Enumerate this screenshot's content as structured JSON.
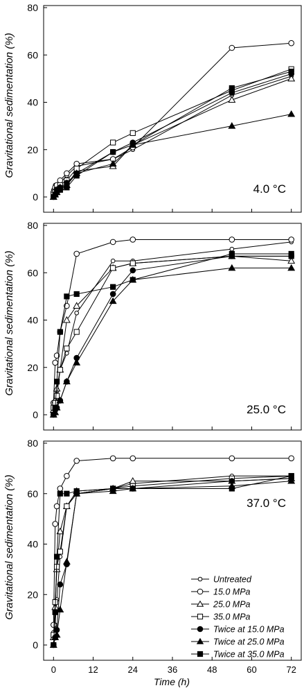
{
  "figure": {
    "ylabel": "Gravitational sedimentation (%)",
    "xlabel": "Time (h)",
    "legend": {
      "placement": "bottom-right of bottom panel",
      "entries": [
        {
          "label": "Untreated",
          "marker": "small-open-circle"
        },
        {
          "label": "15.0 MPa",
          "marker": "open-circle"
        },
        {
          "label": "25.0 MPa",
          "marker": "open-triangle"
        },
        {
          "label": "35.0 MPa",
          "marker": "open-square"
        },
        {
          "label": "Twice at 15.0 MPa",
          "marker": "filled-circle"
        },
        {
          "label": "Twice at 25.0 MPa",
          "marker": "filled-triangle"
        },
        {
          "label": "Twice at 35.0 MPa",
          "marker": "filled-square"
        }
      ]
    }
  },
  "chart_data": [
    {
      "type": "line",
      "annotation": "4.0 °C",
      "xlim": [
        -3,
        75
      ],
      "ylim": [
        0,
        80
      ],
      "xticks": [
        0,
        12,
        24,
        36,
        48,
        60,
        72
      ],
      "yticks": [
        0,
        20,
        40,
        60,
        80
      ],
      "show_x_tick_labels": false,
      "series": [
        {
          "name": "Untreated",
          "marker": "small-open-circle",
          "x": [
            0,
            0.5,
            1,
            2,
            4,
            7,
            18,
            24,
            54,
            72
          ],
          "y": [
            3,
            5,
            4,
            6,
            9,
            13,
            16,
            20,
            43,
            51
          ]
        },
        {
          "name": "15.0 MPa",
          "marker": "open-circle",
          "x": [
            0,
            0.5,
            1,
            2,
            4,
            7,
            18,
            24,
            54,
            72
          ],
          "y": [
            2,
            4,
            5,
            7,
            10,
            14,
            16,
            21,
            63,
            65
          ]
        },
        {
          "name": "25.0 MPa",
          "marker": "open-triangle",
          "x": [
            0,
            0.5,
            1,
            2,
            4,
            7,
            18,
            24,
            54,
            72
          ],
          "y": [
            0,
            2,
            3,
            4,
            5,
            11,
            13,
            22,
            41,
            50
          ]
        },
        {
          "name": "35.0 MPa",
          "marker": "open-square",
          "x": [
            0,
            0.5,
            1,
            2,
            4,
            7,
            18,
            24,
            54,
            72
          ],
          "y": [
            1,
            2,
            3,
            5,
            7,
            12,
            23,
            27,
            45,
            54
          ]
        },
        {
          "name": "Twice at 15.0 MPa",
          "marker": "filled-circle",
          "x": [
            0,
            0.5,
            1,
            2,
            4,
            7,
            18,
            24,
            54,
            72
          ],
          "y": [
            0,
            1,
            3,
            4,
            6,
            10,
            19,
            23,
            44,
            52
          ]
        },
        {
          "name": "Twice at 25.0 MPa",
          "marker": "filled-triangle",
          "x": [
            0,
            0.5,
            1,
            2,
            4,
            7,
            18,
            24,
            54,
            72
          ],
          "y": [
            0,
            1,
            2,
            4,
            5,
            10,
            14,
            22,
            30,
            35
          ]
        },
        {
          "name": "Twice at 35.0 MPa",
          "marker": "filled-square",
          "x": [
            0,
            0.5,
            1,
            2,
            4,
            7,
            18,
            24,
            54,
            72
          ],
          "y": [
            0,
            1,
            2,
            3,
            4,
            9,
            19,
            22,
            46,
            53
          ]
        }
      ]
    },
    {
      "type": "line",
      "annotation": "25.0 °C",
      "xlim": [
        -3,
        75
      ],
      "ylim": [
        0,
        80
      ],
      "xticks": [
        0,
        12,
        24,
        36,
        48,
        60,
        72
      ],
      "yticks": [
        0,
        20,
        40,
        60,
        80
      ],
      "show_x_tick_labels": false,
      "series": [
        {
          "name": "Untreated",
          "marker": "small-open-circle",
          "x": [
            0,
            0.5,
            1,
            2,
            4,
            7,
            18,
            24,
            54,
            72
          ],
          "y": [
            3,
            6,
            10,
            19,
            26,
            43,
            65,
            65,
            70,
            73
          ]
        },
        {
          "name": "15.0 MPa",
          "marker": "open-circle",
          "x": [
            0,
            0.5,
            1,
            2,
            4,
            7,
            18,
            24,
            54,
            72
          ],
          "y": [
            5,
            22,
            25,
            35,
            46,
            68,
            73,
            74,
            74,
            74
          ]
        },
        {
          "name": "25.0 MPa",
          "marker": "open-triangle",
          "x": [
            0,
            0.5,
            1,
            2,
            4,
            7,
            18,
            24,
            54,
            72
          ],
          "y": [
            2,
            6,
            11,
            19,
            40,
            46,
            62,
            64,
            67,
            65
          ]
        },
        {
          "name": "35.0 MPa",
          "marker": "open-square",
          "x": [
            0,
            0.5,
            1,
            2,
            4,
            7,
            18,
            24,
            54,
            72
          ],
          "y": [
            3,
            5,
            8,
            19,
            28,
            35,
            62,
            64,
            67,
            67
          ]
        },
        {
          "name": "Twice at 15.0 MPa",
          "marker": "filled-circle",
          "x": [
            0,
            0.5,
            1,
            2,
            4,
            7,
            18,
            24,
            54,
            72
          ],
          "y": [
            0,
            2,
            3,
            6,
            14,
            24,
            51,
            61,
            67,
            67
          ]
        },
        {
          "name": "Twice at 25.0 MPa",
          "marker": "filled-triangle",
          "x": [
            0,
            0.5,
            1,
            2,
            4,
            7,
            18,
            24,
            54,
            72
          ],
          "y": [
            0,
            1,
            3,
            6,
            14,
            22,
            48,
            57,
            62,
            62
          ]
        },
        {
          "name": "Twice at 35.0 MPa",
          "marker": "filled-square",
          "x": [
            0,
            0.5,
            1,
            2,
            4,
            7,
            18,
            24,
            54,
            72
          ],
          "y": [
            0,
            3,
            14,
            35,
            50,
            51,
            54,
            57,
            68,
            68
          ]
        }
      ]
    },
    {
      "type": "line",
      "annotation": "37.0 °C",
      "xlim": [
        -3,
        75
      ],
      "ylim": [
        0,
        80
      ],
      "xticks": [
        0,
        12,
        24,
        36,
        48,
        60,
        72
      ],
      "yticks": [
        0,
        20,
        40,
        60,
        80
      ],
      "show_x_tick_labels": true,
      "series": [
        {
          "name": "Untreated",
          "marker": "small-open-circle",
          "x": [
            0,
            0.5,
            1,
            2,
            4,
            7,
            18,
            24,
            54,
            72
          ],
          "y": [
            5,
            8,
            18,
            35,
            55,
            60,
            62,
            64,
            67,
            67
          ]
        },
        {
          "name": "15.0 MPa",
          "marker": "open-circle",
          "x": [
            0,
            0.5,
            1,
            2,
            4,
            7,
            18,
            24,
            54,
            72
          ],
          "y": [
            8,
            48,
            55,
            62,
            67,
            73,
            74,
            74,
            74,
            74
          ]
        },
        {
          "name": "25.0 MPa",
          "marker": "open-triangle",
          "x": [
            0,
            0.5,
            1,
            2,
            4,
            7,
            18,
            24,
            54,
            72
          ],
          "y": [
            3,
            15,
            30,
            45,
            55,
            61,
            62,
            65,
            65,
            66
          ]
        },
        {
          "name": "35.0 MPa",
          "marker": "open-square",
          "x": [
            0,
            0.5,
            1,
            2,
            4,
            7,
            18,
            24,
            54,
            72
          ],
          "y": [
            4,
            17,
            31,
            37,
            55,
            60,
            62,
            63,
            66,
            67
          ]
        },
        {
          "name": "Twice at 15.0 MPa",
          "marker": "filled-circle",
          "x": [
            0,
            0.5,
            1,
            2,
            4,
            7,
            18,
            24,
            54,
            72
          ],
          "y": [
            0,
            3,
            6,
            24,
            32,
            60,
            62,
            62,
            65,
            66
          ]
        },
        {
          "name": "Twice at 25.0 MPa",
          "marker": "filled-triangle",
          "x": [
            0,
            0.5,
            1,
            2,
            4,
            7,
            18,
            24,
            54,
            72
          ],
          "y": [
            0,
            3,
            4,
            14,
            33,
            60,
            61,
            62,
            63,
            65
          ]
        },
        {
          "name": "Twice at 35.0 MPa",
          "marker": "filled-square",
          "x": [
            0,
            0.5,
            1,
            2,
            4,
            7,
            18,
            24,
            54,
            72
          ],
          "y": [
            0,
            13,
            35,
            60,
            60,
            61,
            62,
            62,
            62,
            67
          ]
        }
      ]
    }
  ]
}
